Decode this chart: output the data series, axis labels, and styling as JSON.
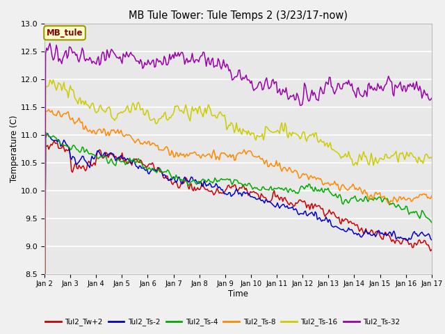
{
  "title": "MB Tule Tower: Tule Temps 2 (3/23/17-now)",
  "xlabel": "Time",
  "ylabel": "Temperature (C)",
  "ylim": [
    8.5,
    13.0
  ],
  "xlim": [
    0,
    15
  ],
  "x_tick_labels": [
    "Jan 2",
    "Jan 3",
    "Jan 4",
    "Jan 5",
    "Jan 6",
    "Jan 7",
    "Jan 8",
    "Jan 9",
    "Jan 10",
    "Jan 11",
    "Jan 12",
    "Jan 13",
    "Jan 14",
    "Jan 15",
    "Jan 16",
    "Jan 17"
  ],
  "fig_bg_color": "#f0f0f0",
  "plot_bg_color": "#e8e8e8",
  "grid_color": "#ffffff",
  "series": {
    "Tul2_Tw+2": {
      "color": "#cc0000",
      "label": "Tul2_Tw+2"
    },
    "Tul2_Ts-2": {
      "color": "#0000cc",
      "label": "Tul2_Ts-2"
    },
    "Tul2_Ts-4": {
      "color": "#00aa00",
      "label": "Tul2_Ts-4"
    },
    "Tul2_Ts-8": {
      "color": "#ff8800",
      "label": "Tul2_Ts-8"
    },
    "Tul2_Ts-16": {
      "color": "#cccc00",
      "label": "Tul2_Ts-16"
    },
    "Tul2_Ts-32": {
      "color": "#9900aa",
      "label": "Tul2_Ts-32"
    }
  },
  "mb_tule_box": {
    "text": "MB_tule",
    "facecolor": "#ffffcc",
    "edgecolor": "#999900",
    "textcolor": "#880000"
  }
}
